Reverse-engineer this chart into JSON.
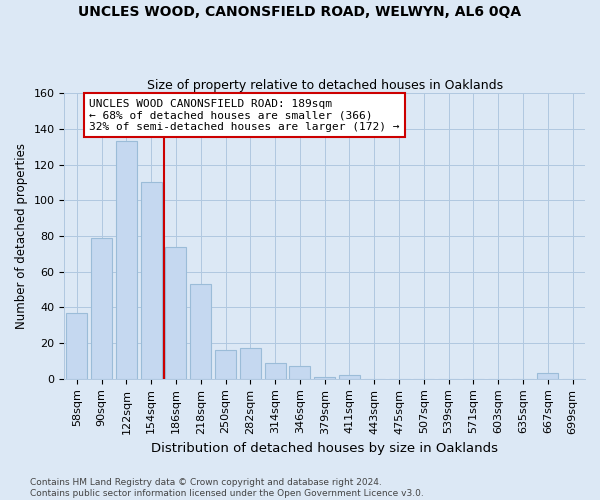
{
  "title": "UNCLES WOOD, CANONSFIELD ROAD, WELWYN, AL6 0QA",
  "subtitle": "Size of property relative to detached houses in Oaklands",
  "xlabel": "Distribution of detached houses by size in Oaklands",
  "ylabel": "Number of detached properties",
  "categories": [
    "58sqm",
    "90sqm",
    "122sqm",
    "154sqm",
    "186sqm",
    "218sqm",
    "250sqm",
    "282sqm",
    "314sqm",
    "346sqm",
    "379sqm",
    "411sqm",
    "443sqm",
    "475sqm",
    "507sqm",
    "539sqm",
    "571sqm",
    "603sqm",
    "635sqm",
    "667sqm",
    "699sqm"
  ],
  "values": [
    37,
    79,
    133,
    110,
    74,
    53,
    16,
    17,
    9,
    7,
    1,
    2,
    0,
    0,
    0,
    0,
    0,
    0,
    0,
    3,
    0
  ],
  "bar_color": "#c5d8f0",
  "bar_edge_color": "#9bbcd8",
  "vline_color": "#cc0000",
  "vline_x": 3.5,
  "annotation_line1": "UNCLES WOOD CANONSFIELD ROAD: 189sqm",
  "annotation_line2": "← 68% of detached houses are smaller (366)",
  "annotation_line3": "32% of semi-detached houses are larger (172) →",
  "annotation_box_color": "#ffffff",
  "annotation_box_edge": "#cc0000",
  "ylim": [
    0,
    160
  ],
  "yticks": [
    0,
    20,
    40,
    60,
    80,
    100,
    120,
    140,
    160
  ],
  "footnote": "Contains HM Land Registry data © Crown copyright and database right 2024.\nContains public sector information licensed under the Open Government Licence v3.0.",
  "bg_color": "#dce8f5",
  "plot_bg_color": "#dce8f5",
  "grid_color": "#b0c8e0",
  "title_fontsize": 10,
  "subtitle_fontsize": 9,
  "tick_fontsize": 8,
  "ylabel_fontsize": 8.5,
  "xlabel_fontsize": 9.5,
  "annotation_fontsize": 8,
  "footnote_fontsize": 6.5
}
